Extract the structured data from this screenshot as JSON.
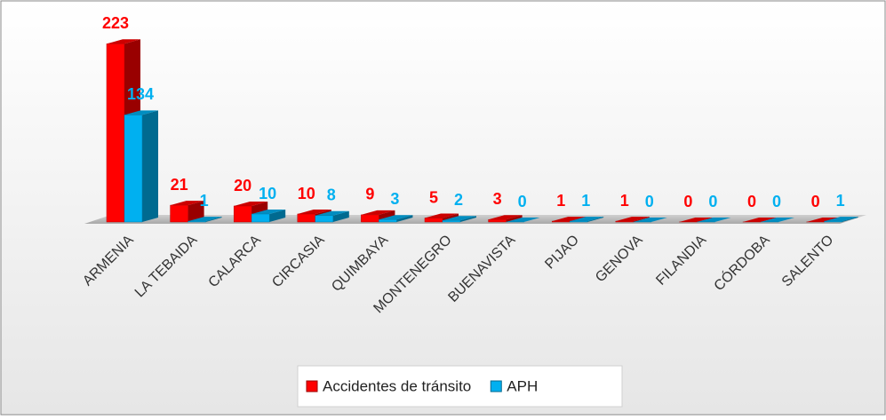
{
  "chart_data": {
    "type": "bar3d",
    "categories": [
      "ARMENIA",
      "LA TEBAIDA",
      "CALARCA",
      "CIRCASIA",
      "QUIMBAYA",
      "MONTENEGRO",
      "BUENAVISTA",
      "PIJAO",
      "GENOVA",
      "FILANDIA",
      "CÓRDOBA",
      "SALENTO"
    ],
    "series": [
      {
        "name": "Accidentes de tránsito",
        "color": "#ff0000",
        "values": [
          223,
          21,
          20,
          10,
          9,
          5,
          3,
          1,
          1,
          0,
          0,
          0
        ]
      },
      {
        "name": "APH",
        "color": "#00b0f0",
        "values": [
          134,
          1,
          10,
          8,
          3,
          2,
          0,
          1,
          0,
          0,
          0,
          1
        ]
      }
    ],
    "ylim": [
      0,
      250
    ]
  }
}
